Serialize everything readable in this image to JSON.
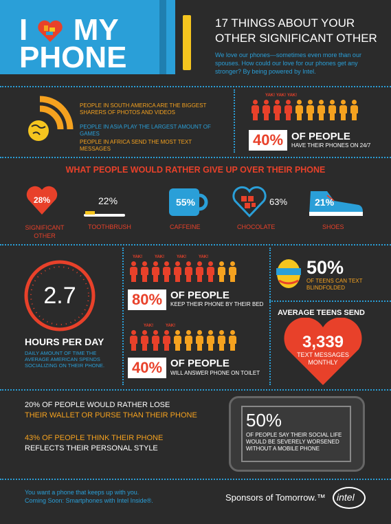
{
  "header": {
    "logo_line1_left": "I",
    "logo_line1_right": "MY",
    "logo_line2": "PHONE",
    "title_line1": "17 THINGS ABOUT YOUR",
    "title_line2": "OTHER SIGNIFICANT OTHER",
    "intro": "We love our phones—sometimes even more than our spouses. How could our love for our phones get any stronger? By being powered by Intel."
  },
  "regions": {
    "south_america": "PEOPLE IN SOUTH AMERICA ARE THE BIGGEST SHARERS OF PHOTOS AND VIDEOS",
    "asia": "PEOPLE IN ASIA PLAY THE LARGEST AMOUNT OF GAMES",
    "africa": "PEOPLE IN AFRICA SEND THE MOST TEXT MESSAGES"
  },
  "phones_24_7": {
    "yak": "YAK!",
    "percent": "40%",
    "label_top": "OF PEOPLE",
    "label_bottom": "HAVE THEIR PHONES ON 24/7",
    "share": 0.4
  },
  "give_up": {
    "heading": "WHAT PEOPLE WOULD RATHER GIVE UP OVER THEIR PHONE",
    "items": [
      {
        "percent": "28%",
        "label": "SIGNIFICANT OTHER"
      },
      {
        "percent": "22%",
        "label": "TOOTHBRUSH"
      },
      {
        "percent": "55%",
        "label": "CAFFEINE"
      },
      {
        "percent": "63%",
        "label": "CHOCOLATE"
      },
      {
        "percent": "21%",
        "label": "SHOES"
      }
    ]
  },
  "hours": {
    "value": "2.7",
    "label": "HOURS PER DAY",
    "desc": "DAILY AMOUNT OF TIME THE AVERAGE AMERICAN SPENDS SOCIALIZING ON THEIR PHONE."
  },
  "bed": {
    "yak": "YAK!",
    "percent": "80%",
    "label_top": "OF PEOPLE",
    "label_bottom": "KEEP THEIR PHONE BY THEIR BED",
    "share": 0.8
  },
  "toilet": {
    "yak": "YAK!",
    "percent": "40%",
    "label_top": "OF PEOPLE",
    "label_bottom": "WILL ANSWER PHONE ON TOILET",
    "share": 0.4
  },
  "blindfold": {
    "percent": "50%",
    "label": "OF TEENS CAN TEXT BLINDFOLDED"
  },
  "teens": {
    "heading": "AVERAGE TEENS SEND",
    "value": "3,339",
    "label": "TEXT MESSAGES MONTHLY"
  },
  "wallet": {
    "line1": "20% OF PEOPLE WOULD RATHER LOSE",
    "line2": "THEIR WALLET OR PURSE THAN THEIR PHONE"
  },
  "style": {
    "line1": "43% OF PEOPLE THINK THEIR PHONE",
    "line2": "REFLECTS THEIR PERSONAL STYLE"
  },
  "social": {
    "percent": "50%",
    "desc": "OF PEOPLE SAY THEIR SOCIAL LIFE WOULD BE SEVERELY WORSENED WITHOUT A MOBILE PHONE"
  },
  "footer": {
    "line1": "You want a phone that keeps up with you.",
    "line2": "Coming Soon: Smartphones with Intel Inside®.",
    "sponsor": "Sponsors of Tomorrow.™",
    "brand": "intel"
  },
  "colors": {
    "bg": "#2b2b2b",
    "blue": "#2a9fd8",
    "red": "#e8412a",
    "orange": "#f5a21f"
  }
}
